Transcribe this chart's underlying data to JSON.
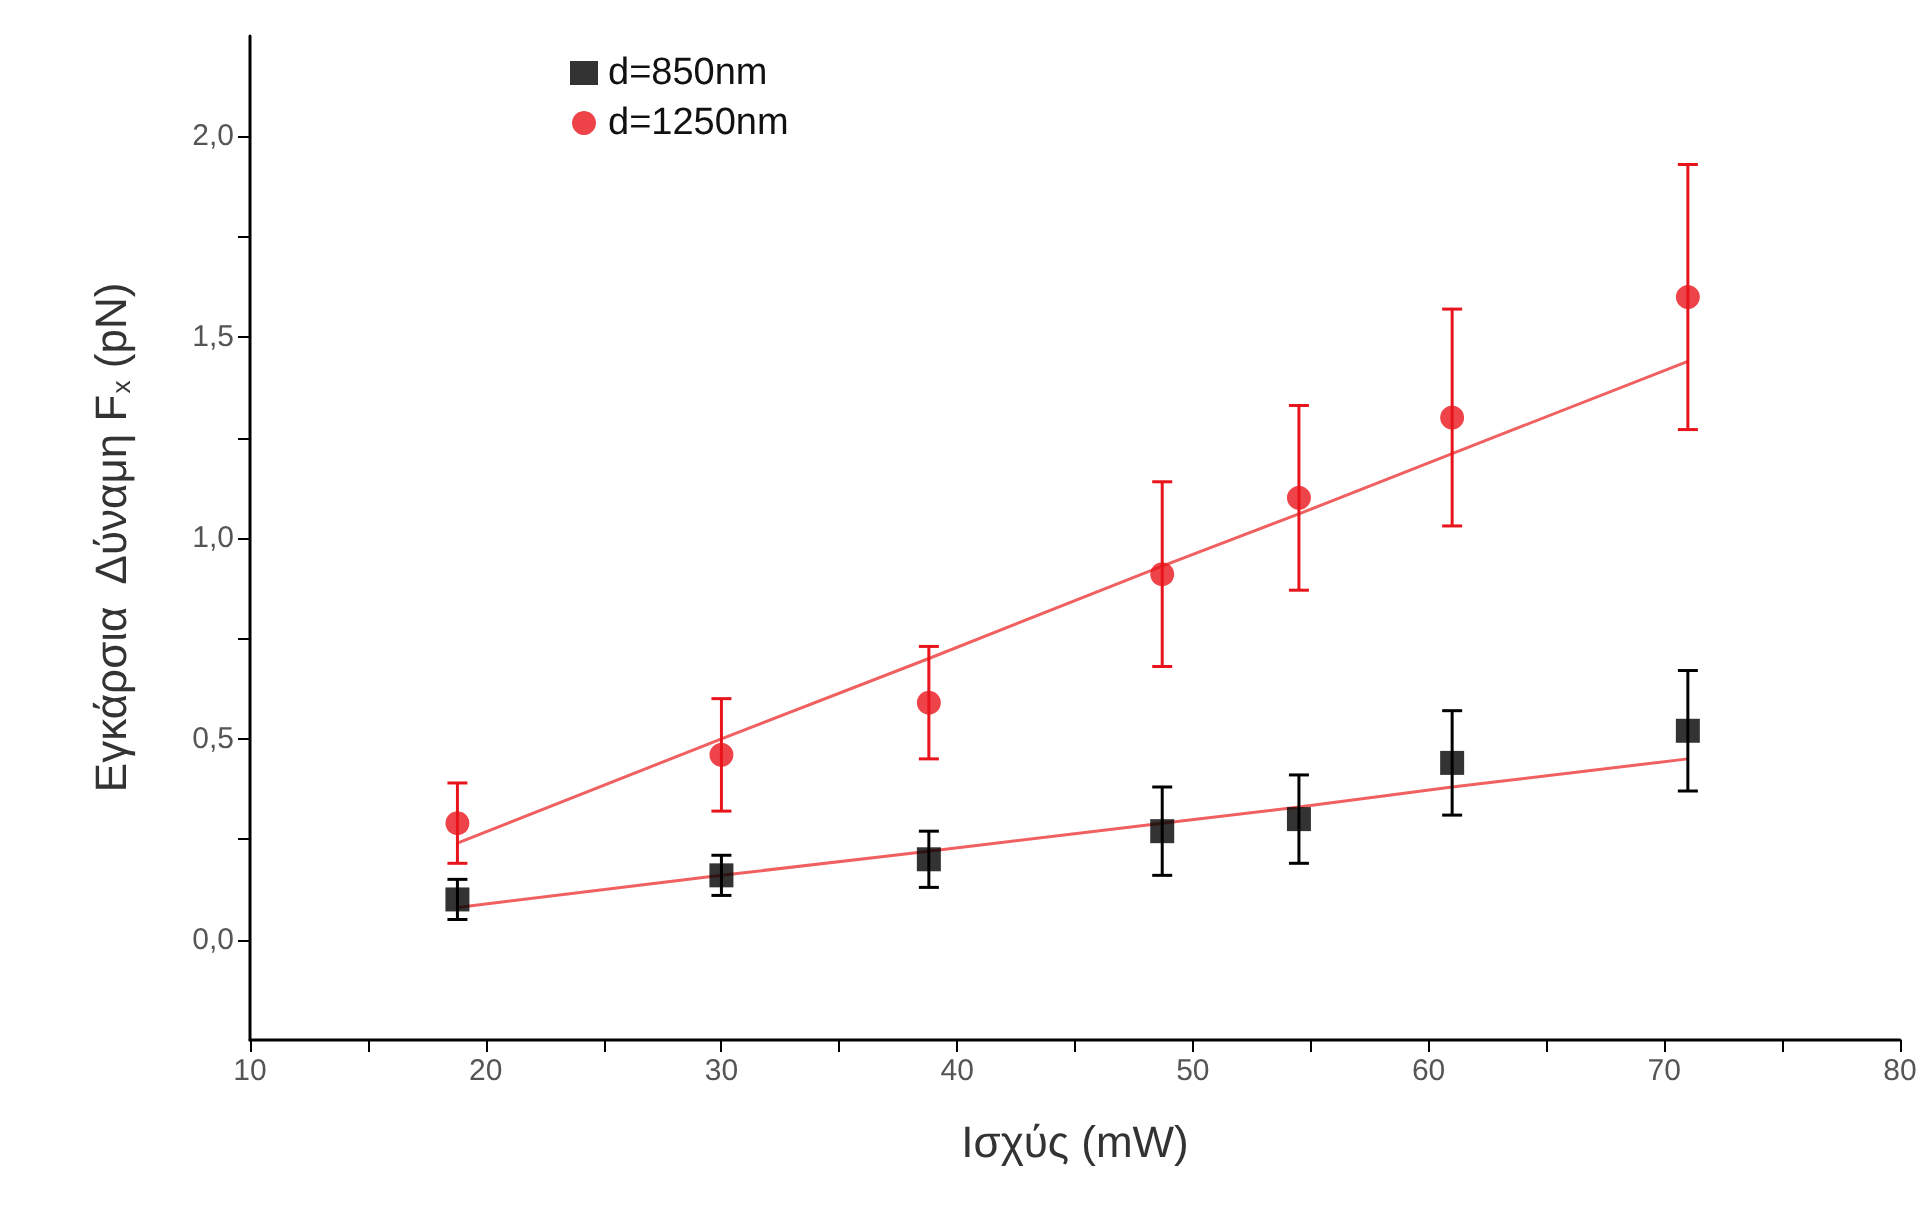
{
  "chart_data": {
    "type": "scatter",
    "xlabel": "Ισχύς (mW)",
    "ylabel": "Εγκάρσια  Δύναμη F$_{x}$ (pN)",
    "xlim": [
      10,
      80
    ],
    "ylim": [
      -0.25,
      2.25
    ],
    "xticks": [
      10,
      {
        "value": 15,
        "label": null
      },
      20,
      {
        "value": 25,
        "label": null
      },
      30,
      {
        "value": 35,
        "label": null
      },
      40,
      {
        "value": 45,
        "label": null
      },
      50,
      {
        "value": 55,
        "label": null
      },
      60,
      {
        "value": 65,
        "label": null
      },
      70,
      {
        "value": 75,
        "label": null
      },
      80
    ],
    "yticks": [
      {
        "value": 0,
        "label": "0,0"
      },
      {
        "value": 0.25,
        "label": null
      },
      {
        "value": 0.5,
        "label": "0,5"
      },
      {
        "value": 0.75,
        "label": null
      },
      {
        "value": 1,
        "label": "1,0"
      },
      {
        "value": 1.25,
        "label": null
      },
      {
        "value": 1.5,
        "label": "1,5"
      },
      {
        "value": 1.75,
        "label": null
      },
      {
        "value": 2,
        "label": "2,0"
      }
    ],
    "grid": false,
    "legend": "top left",
    "x": [
      18.8,
      30,
      38.8,
      48.7,
      54.5,
      61,
      71
    ],
    "series": [
      {
        "name": "d=850nm",
        "color": "#000000",
        "marker": "square",
        "values": [
          0.1,
          0.16,
          0.2,
          0.27,
          0.3,
          0.44,
          0.52
        ],
        "errors": [
          0.05,
          0.05,
          0.07,
          0.11,
          0.11,
          0.13,
          0.15
        ]
      },
      {
        "name": "d=1250nm",
        "color": "#e8141b",
        "marker": "circle",
        "values": [
          0.29,
          0.46,
          0.59,
          0.91,
          1.1,
          1.3,
          1.6
        ],
        "errors": [
          0.1,
          0.14,
          0.14,
          0.23,
          0.23,
          0.27,
          0.33
        ]
      },
      {
        "type": "line",
        "color": "#f06060",
        "marker": "none",
        "values": [
          0.08,
          0.16,
          0.22,
          0.29,
          0.33,
          0.38,
          0.45
        ]
      },
      {
        "type": "line",
        "color": "#f06060",
        "marker": "none",
        "values": [
          0.24,
          0.5,
          0.7,
          0.93,
          1.06,
          1.21,
          1.44
        ]
      }
    ]
  }
}
